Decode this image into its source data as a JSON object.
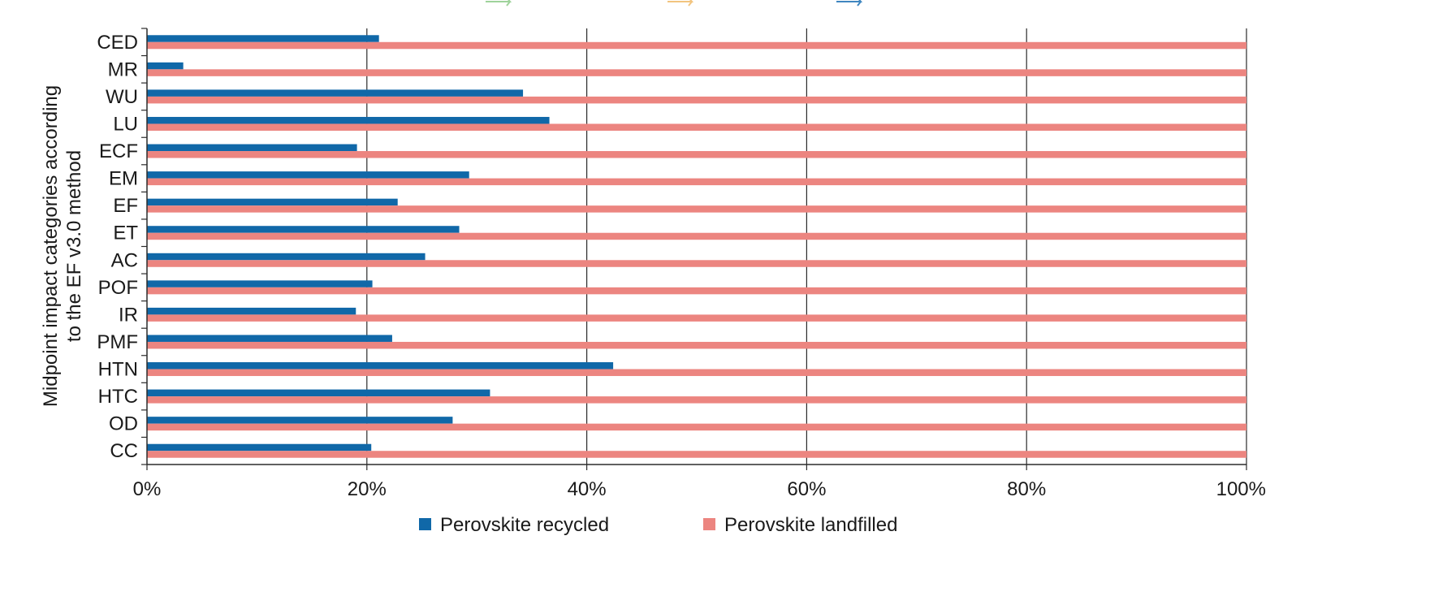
{
  "chart_data": {
    "type": "bar",
    "orientation": "horizontal",
    "title": "",
    "ylabel_lines": [
      "Midpoint impact categories according",
      "to the EF v3.0 method"
    ],
    "xlabel": "",
    "categories": [
      "CED",
      "MR",
      "WU",
      "LU",
      "ECF",
      "EM",
      "EF",
      "ET",
      "AC",
      "POF",
      "IR",
      "PMF",
      "HTN",
      "HTC",
      "OD",
      "CC"
    ],
    "series": [
      {
        "name": "Perovskite recycled",
        "color": "#1068a8",
        "values": [
          21.1,
          3.3,
          34.2,
          36.6,
          19.1,
          29.3,
          22.8,
          28.4,
          25.3,
          20.5,
          19.0,
          22.3,
          42.4,
          31.2,
          27.8,
          20.4
        ]
      },
      {
        "name": "Perovskite landfilled",
        "color": "#ec8580",
        "values": [
          100,
          100,
          100,
          100,
          100,
          100,
          100,
          100,
          100,
          100,
          100,
          100,
          100,
          100,
          100,
          100
        ]
      }
    ],
    "xlim": [
      0,
      100
    ],
    "xticks": [
      0,
      20,
      40,
      60,
      80,
      100
    ],
    "xtick_labels": [
      "0%",
      "20%",
      "40%",
      "60%",
      "80%",
      "100%"
    ],
    "grid": "vertical",
    "legend_position": "bottom"
  }
}
